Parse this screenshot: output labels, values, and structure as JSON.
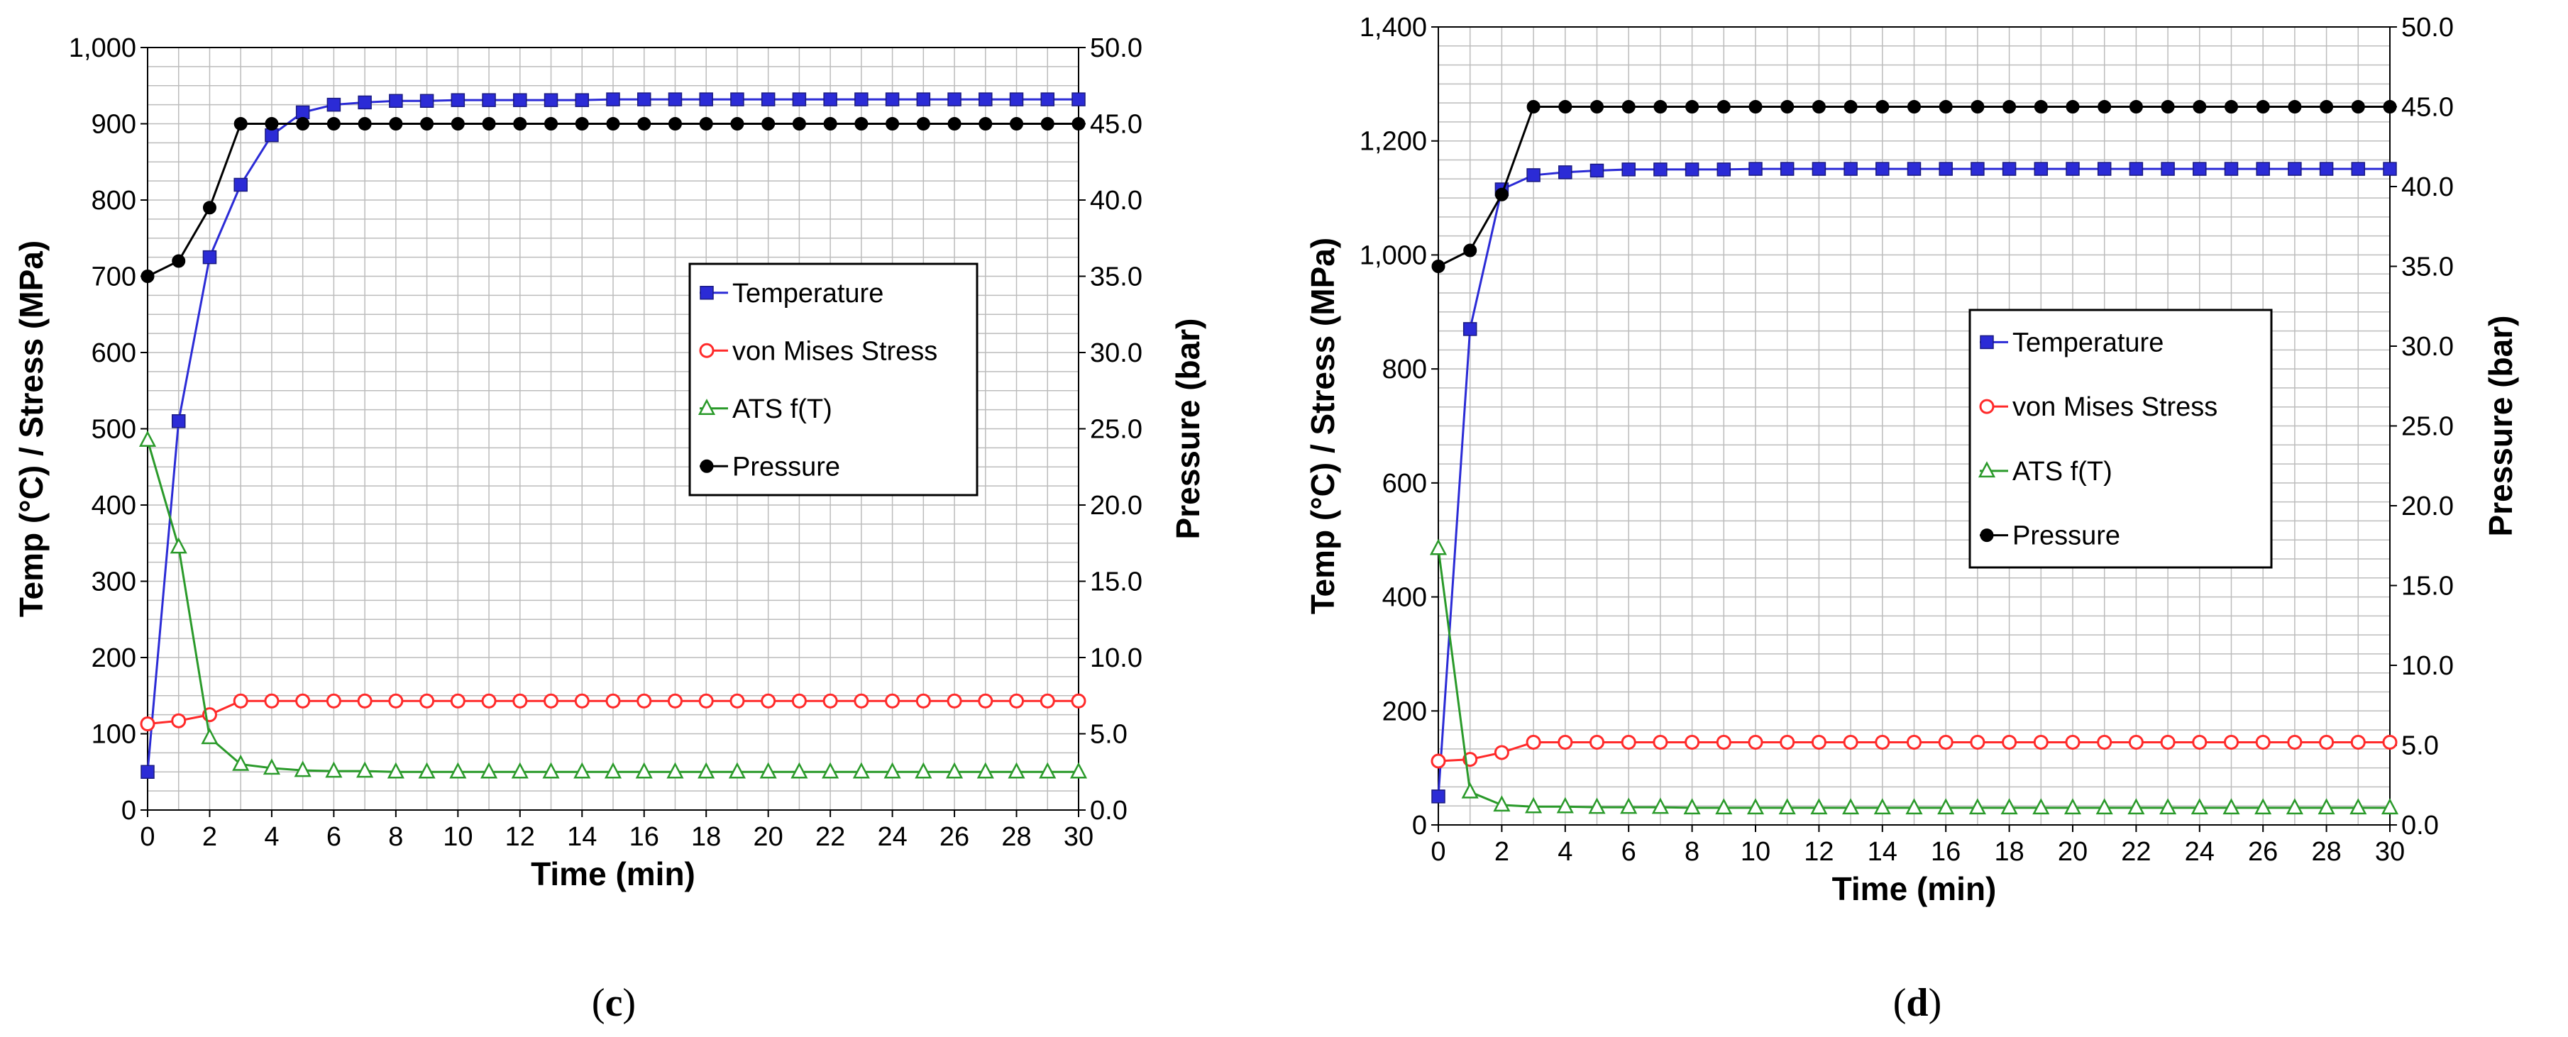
{
  "chart_data": [
    {
      "type": "line",
      "caption_letter": "c",
      "xlabel": "Time (min)",
      "ylabel": "Temp (°C) / Stress (MPa)",
      "y2label": "Pressure  (bar)",
      "xlim": [
        0,
        30
      ],
      "ylim": [
        0,
        1000
      ],
      "y2lim": [
        0,
        50
      ],
      "xticks": [
        "0",
        "2",
        "4",
        "6",
        "8",
        "10",
        "12",
        "14",
        "16",
        "18",
        "20",
        "22",
        "24",
        "26",
        "28",
        "30"
      ],
      "yticks": [
        "0",
        "100",
        "200",
        "300",
        "400",
        "500",
        "600",
        "700",
        "800",
        "900",
        "1,000"
      ],
      "y2ticks": [
        "0.0",
        "5.0",
        "10.0",
        "15.0",
        "20.0",
        "25.0",
        "30.0",
        "35.0",
        "40.0",
        "45.0",
        "50.0"
      ],
      "grid": true,
      "legend_position": "center-right",
      "x": [
        0,
        1,
        2,
        3,
        4,
        5,
        6,
        7,
        8,
        9,
        10,
        11,
        12,
        13,
        14,
        15,
        16,
        17,
        18,
        19,
        20,
        21,
        22,
        23,
        24,
        25,
        26,
        27,
        28,
        29,
        30
      ],
      "series": [
        {
          "name": "Temperature",
          "axis": "left",
          "color": "#2b2bd6",
          "marker": "square",
          "values": [
            50,
            510,
            725,
            820,
            885,
            915,
            925,
            928,
            930,
            930,
            931,
            931,
            931,
            931,
            931,
            932,
            932,
            932,
            932,
            932,
            932,
            932,
            932,
            932,
            932,
            932,
            932,
            932,
            932,
            932,
            932
          ]
        },
        {
          "name": "von Mises Stress",
          "axis": "left",
          "color": "#ff2a2a",
          "marker": "circle-open",
          "values": [
            113,
            117,
            125,
            143,
            143,
            143,
            143,
            143,
            143,
            143,
            143,
            143,
            143,
            143,
            143,
            143,
            143,
            143,
            143,
            143,
            143,
            143,
            143,
            143,
            143,
            143,
            143,
            143,
            143,
            143,
            143
          ]
        },
        {
          "name": "ATS f(T)",
          "axis": "left",
          "color": "#2a9a2a",
          "marker": "triangle-open",
          "values": [
            485,
            345,
            95,
            60,
            55,
            52,
            51,
            51,
            50,
            50,
            50,
            50,
            50,
            50,
            50,
            50,
            50,
            50,
            50,
            50,
            50,
            50,
            50,
            50,
            50,
            50,
            50,
            50,
            50,
            50,
            50
          ]
        },
        {
          "name": "Pressure",
          "axis": "right",
          "color": "#000000",
          "marker": "circle",
          "values": [
            35,
            36,
            39.5,
            45,
            45,
            45,
            45,
            45,
            45,
            45,
            45,
            45,
            45,
            45,
            45,
            45,
            45,
            45,
            45,
            45,
            45,
            45,
            45,
            45,
            45,
            45,
            45,
            45,
            45,
            45,
            45
          ]
        }
      ]
    },
    {
      "type": "line",
      "caption_letter": "d",
      "xlabel": "Time (min)",
      "ylabel": "Temp (°C) / Stress (MPa)",
      "y2label": "Pressure  (bar)",
      "xlim": [
        0,
        30
      ],
      "ylim": [
        0,
        1400
      ],
      "y2lim": [
        0,
        50
      ],
      "xticks": [
        "0",
        "2",
        "4",
        "6",
        "8",
        "10",
        "12",
        "14",
        "16",
        "18",
        "20",
        "22",
        "24",
        "26",
        "28",
        "30"
      ],
      "yticks": [
        "0",
        "200",
        "400",
        "600",
        "800",
        "1,000",
        "1,200",
        "1,400"
      ],
      "y2ticks": [
        "0.0",
        "5.0",
        "10.0",
        "15.0",
        "20.0",
        "25.0",
        "30.0",
        "35.0",
        "40.0",
        "45.0",
        "50.0"
      ],
      "grid": true,
      "legend_position": "center-right",
      "x": [
        0,
        1,
        2,
        3,
        4,
        5,
        6,
        7,
        8,
        9,
        10,
        11,
        12,
        13,
        14,
        15,
        16,
        17,
        18,
        19,
        20,
        21,
        22,
        23,
        24,
        25,
        26,
        27,
        28,
        29,
        30
      ],
      "series": [
        {
          "name": "Temperature",
          "axis": "left",
          "color": "#2b2bd6",
          "marker": "square",
          "values": [
            50,
            870,
            1115,
            1140,
            1145,
            1148,
            1150,
            1150,
            1150,
            1150,
            1151,
            1151,
            1151,
            1151,
            1151,
            1151,
            1151,
            1151,
            1151,
            1151,
            1151,
            1151,
            1151,
            1151,
            1151,
            1151,
            1151,
            1151,
            1151,
            1151,
            1151
          ]
        },
        {
          "name": "von Mises Stress",
          "axis": "left",
          "color": "#ff2a2a",
          "marker": "circle-open",
          "values": [
            112,
            115,
            127,
            145,
            145,
            145,
            145,
            145,
            145,
            145,
            145,
            145,
            145,
            145,
            145,
            145,
            145,
            145,
            145,
            145,
            145,
            145,
            145,
            145,
            145,
            145,
            145,
            145,
            145,
            145,
            145
          ]
        },
        {
          "name": "ATS f(T)",
          "axis": "left",
          "color": "#2a9a2a",
          "marker": "triangle-open",
          "values": [
            485,
            58,
            35,
            32,
            32,
            31,
            31,
            31,
            30,
            30,
            30,
            30,
            30,
            30,
            30,
            30,
            30,
            30,
            30,
            30,
            30,
            30,
            30,
            30,
            30,
            30,
            30,
            30,
            30,
            30,
            30
          ]
        },
        {
          "name": "Pressure",
          "axis": "right",
          "color": "#000000",
          "marker": "circle",
          "values": [
            35,
            36,
            39.5,
            45,
            45,
            45,
            45,
            45,
            45,
            45,
            45,
            45,
            45,
            45,
            45,
            45,
            45,
            45,
            45,
            45,
            45,
            45,
            45,
            45,
            45,
            45,
            45,
            45,
            45,
            45,
            45
          ]
        }
      ]
    }
  ]
}
